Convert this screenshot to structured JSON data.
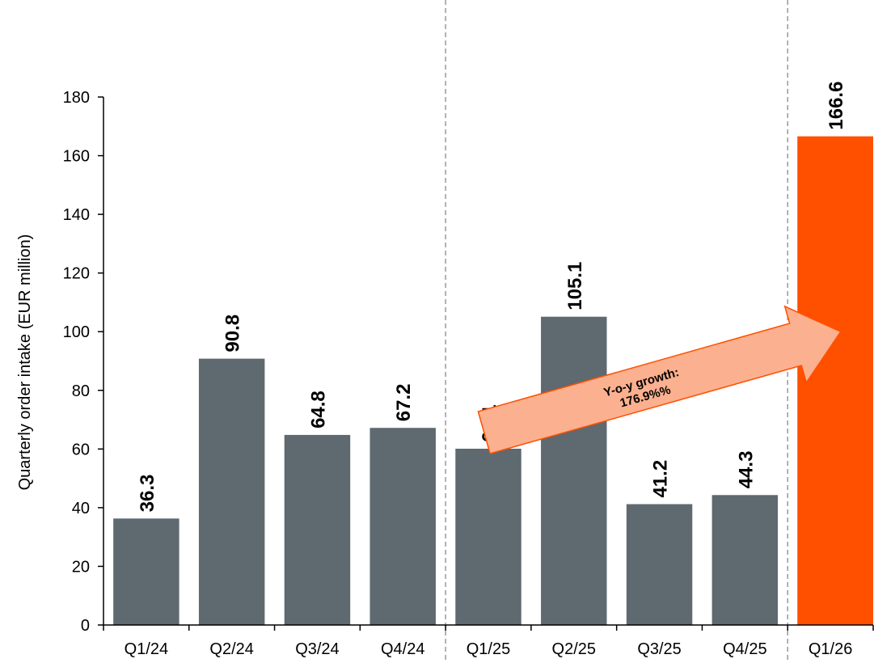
{
  "chart_data": {
    "type": "bar",
    "categories": [
      "Q1/24",
      "Q2/24",
      "Q3/24",
      "Q4/24",
      "Q1/25",
      "Q2/25",
      "Q3/25",
      "Q4/25",
      "Q1/26"
    ],
    "values": [
      36.3,
      90.8,
      64.8,
      67.2,
      60.1,
      105.1,
      41.2,
      44.3,
      166.6
    ],
    "value_labels": [
      "36.3",
      "90.8",
      "64.8",
      "67.2",
      "60.1",
      "105.1",
      "41.2",
      "44.3",
      "166.6"
    ],
    "ylabel": "Quarterly order intake (EUR million)",
    "ylim": [
      0,
      180
    ],
    "yticks": [
      "0",
      "20",
      "40",
      "60",
      "80",
      "100",
      "120",
      "140",
      "160",
      "180"
    ],
    "grid": false,
    "colors": {
      "bar": "#5e6970",
      "highlight": "#ff5000",
      "arrow_fill": "#fbb08f",
      "arrow_stroke": "#ff5000",
      "separator": "#999999"
    },
    "highlight_category": "Q1/26",
    "separators_after": [
      "Q4/24",
      "Q4/25"
    ],
    "annotation": {
      "line1": "Y-o-y growth:",
      "line2": "176.9%%",
      "from": "Q1/25",
      "to": "Q1/26"
    }
  }
}
